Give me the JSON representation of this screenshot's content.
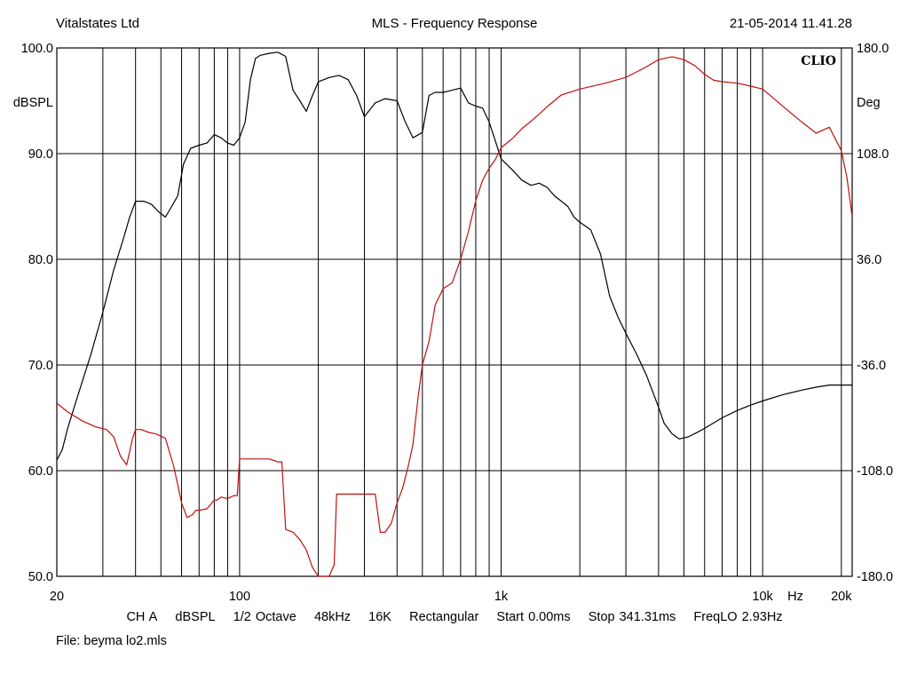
{
  "header": {
    "left": "Vitalstates Ltd",
    "center": "MLS - Frequency Response",
    "right": "21-05-2014 11.41.28"
  },
  "footer": {
    "settings": [
      "CH A",
      "dBSPL",
      "1/2 Octave",
      "48kHz",
      "16K",
      "Rectangular",
      "Start 0.00ms",
      "Stop 341.31ms",
      "FreqLO 2.93Hz"
    ],
    "file": "File: beyma lo2.mls"
  },
  "chart_data": {
    "type": "line",
    "title": "MLS - Frequency Response",
    "brand_label": "CLIO",
    "x_scale": "log",
    "xlim": [
      20,
      22000
    ],
    "x_tick_labels": [
      {
        "value": 20,
        "label": "20"
      },
      {
        "value": 100,
        "label": "100"
      },
      {
        "value": 1000,
        "label": "1k"
      },
      {
        "value": 10000,
        "label": "10k"
      },
      {
        "value": 20000,
        "label": "20k"
      }
    ],
    "x_unit_label": "Hz",
    "ylabel_left": "dBSPL",
    "ylim_left": [
      50,
      100
    ],
    "y_ticks_left": [
      "100.0",
      "90.0",
      "80.0",
      "70.0",
      "60.0",
      "50.0"
    ],
    "ylabel_right": "Deg",
    "ylim_right": [
      -180,
      180
    ],
    "y_ticks_right": [
      "180.0",
      "108.0",
      "36.0",
      "-36.0",
      "-108.0",
      "-180.0"
    ],
    "grid": true,
    "colors": {
      "magnitude": "#000000",
      "phase": "#c01010",
      "grid": "#000000"
    },
    "series": [
      {
        "axis": "left",
        "color": "#000000",
        "x": [
          20,
          21,
          22,
          24,
          27,
          30,
          33,
          36,
          38,
          40,
          43,
          46,
          49,
          52,
          55,
          58,
          61,
          65,
          70,
          75,
          80,
          85,
          90,
          95,
          100,
          105,
          110,
          115,
          120,
          130,
          140,
          150,
          160,
          170,
          180,
          190,
          200,
          220,
          240,
          260,
          280,
          300,
          330,
          360,
          400,
          430,
          460,
          500,
          530,
          560,
          600,
          650,
          700,
          750,
          800,
          850,
          900,
          950,
          1000,
          1100,
          1200,
          1300,
          1400,
          1500,
          1600,
          1700,
          1800,
          1900,
          2000,
          2200,
          2400,
          2600,
          2800,
          3000,
          3300,
          3600,
          4000,
          4200,
          4500,
          4800,
          5200,
          5600,
          6000,
          7000,
          8000,
          9000,
          10000,
          12000,
          14000,
          16000,
          18000,
          20000,
          22000
        ],
        "y": [
          61.0,
          62.0,
          64.0,
          67.0,
          71.0,
          75.0,
          79.0,
          82.0,
          84.0,
          85.5,
          85.5,
          85.2,
          84.5,
          84.0,
          85.0,
          86.0,
          89.0,
          90.5,
          90.8,
          91.0,
          91.8,
          91.5,
          91.0,
          90.8,
          91.5,
          93.0,
          97.0,
          99.0,
          99.3,
          99.5,
          99.6,
          99.2,
          96.0,
          95.0,
          94.0,
          95.5,
          96.8,
          97.2,
          97.4,
          97.0,
          95.5,
          93.5,
          94.8,
          95.2,
          95.0,
          93.0,
          91.5,
          92.0,
          95.5,
          95.8,
          95.8,
          96.0,
          96.2,
          94.8,
          94.5,
          94.3,
          93.0,
          91.2,
          89.5,
          88.5,
          87.5,
          87.0,
          87.2,
          86.8,
          86.0,
          85.5,
          85.0,
          84.0,
          83.5,
          82.8,
          80.5,
          76.5,
          74.5,
          73.0,
          71.0,
          69.0,
          66.0,
          64.5,
          63.5,
          63.0,
          63.2,
          63.6,
          64.0,
          65.0,
          65.7,
          66.2,
          66.6,
          67.2,
          67.6,
          67.9,
          68.1,
          68.1,
          68.1
        ]
      },
      {
        "axis": "right",
        "color": "#c01010",
        "x": [
          20,
          22,
          25,
          28,
          31,
          33,
          35,
          37,
          39,
          40,
          42,
          45,
          48,
          52,
          56,
          60,
          63,
          66,
          68,
          70,
          75,
          80,
          82,
          85,
          90,
          95,
          98,
          100,
          110,
          120,
          130,
          140,
          145,
          150,
          160,
          170,
          180,
          190,
          200,
          220,
          230,
          235,
          250,
          300,
          330,
          345,
          350,
          360,
          380,
          400,
          420,
          440,
          460,
          480,
          500,
          530,
          560,
          600,
          650,
          700,
          750,
          800,
          850,
          900,
          950,
          1000,
          1100,
          1200,
          1300,
          1400,
          1500,
          1700,
          2000,
          2500,
          3000,
          3500,
          4000,
          4500,
          5000,
          5500,
          6000,
          6500,
          7000,
          8000,
          9000,
          10000,
          12000,
          14000,
          16000,
          18000,
          20000,
          21000,
          22000
        ],
        "y": [
          -62,
          -68,
          -74,
          -78,
          -80,
          -85,
          -98,
          -104,
          -86,
          -80,
          -80,
          -82,
          -83,
          -86,
          -105,
          -130,
          -140,
          -138,
          -135,
          -135,
          -134,
          -128,
          -128,
          -126,
          -127,
          -125,
          -125,
          -100,
          -100,
          -100,
          -100,
          -102,
          -102,
          -148,
          -150,
          -155,
          -162,
          -174,
          -180,
          -180,
          -172,
          -124,
          -124,
          -124,
          -124,
          -150,
          -150,
          -150,
          -144,
          -130,
          -120,
          -106,
          -90,
          -60,
          -36,
          -20,
          5,
          16,
          20,
          36,
          55,
          76,
          90,
          98,
          104,
          112,
          118,
          125,
          130,
          135,
          140,
          148,
          152,
          156,
          160,
          166,
          172,
          174,
          172,
          168,
          162,
          158,
          157,
          156,
          154,
          152,
          140,
          130,
          122,
          126,
          110,
          92,
          65
        ]
      }
    ]
  }
}
